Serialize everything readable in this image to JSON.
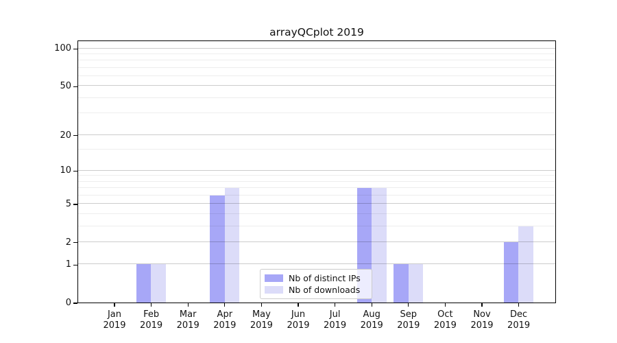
{
  "chart_data": {
    "type": "bar",
    "title": "arrayQCplot 2019",
    "categories": [
      "Jan",
      "Feb",
      "Mar",
      "Apr",
      "May",
      "Jun",
      "Jul",
      "Aug",
      "Sep",
      "Oct",
      "Nov",
      "Dec"
    ],
    "category_year": "2019",
    "series": [
      {
        "name": "Nb of distinct IPs",
        "color": "#a7a7f7",
        "values": [
          0,
          1,
          0,
          6,
          0,
          0,
          0,
          7,
          1,
          0,
          0,
          2
        ]
      },
      {
        "name": "Nb of downloads",
        "color": "#dcdcf9",
        "values": [
          0,
          1,
          0,
          7,
          0,
          0,
          0,
          7,
          1,
          0,
          0,
          3
        ]
      }
    ],
    "xlabel": "",
    "ylabel": "",
    "yscale": "log1p",
    "yticks": [
      0,
      1,
      2,
      5,
      10,
      20,
      50,
      100
    ],
    "yminor": [
      3,
      4,
      6,
      7,
      8,
      9,
      15,
      30,
      40,
      60,
      70,
      80,
      90
    ],
    "ylim": [
      0,
      117
    ],
    "grid": true,
    "legend_position": "bottom-center"
  },
  "colors": {
    "bar_distinct_ips": "#a7a7f7",
    "bar_downloads": "#dcdcf9",
    "grid_major": "#cccccc",
    "grid_minor": "#ececec",
    "axis": "#000000",
    "legend_border": "#cccccc",
    "background": "#ffffff"
  }
}
